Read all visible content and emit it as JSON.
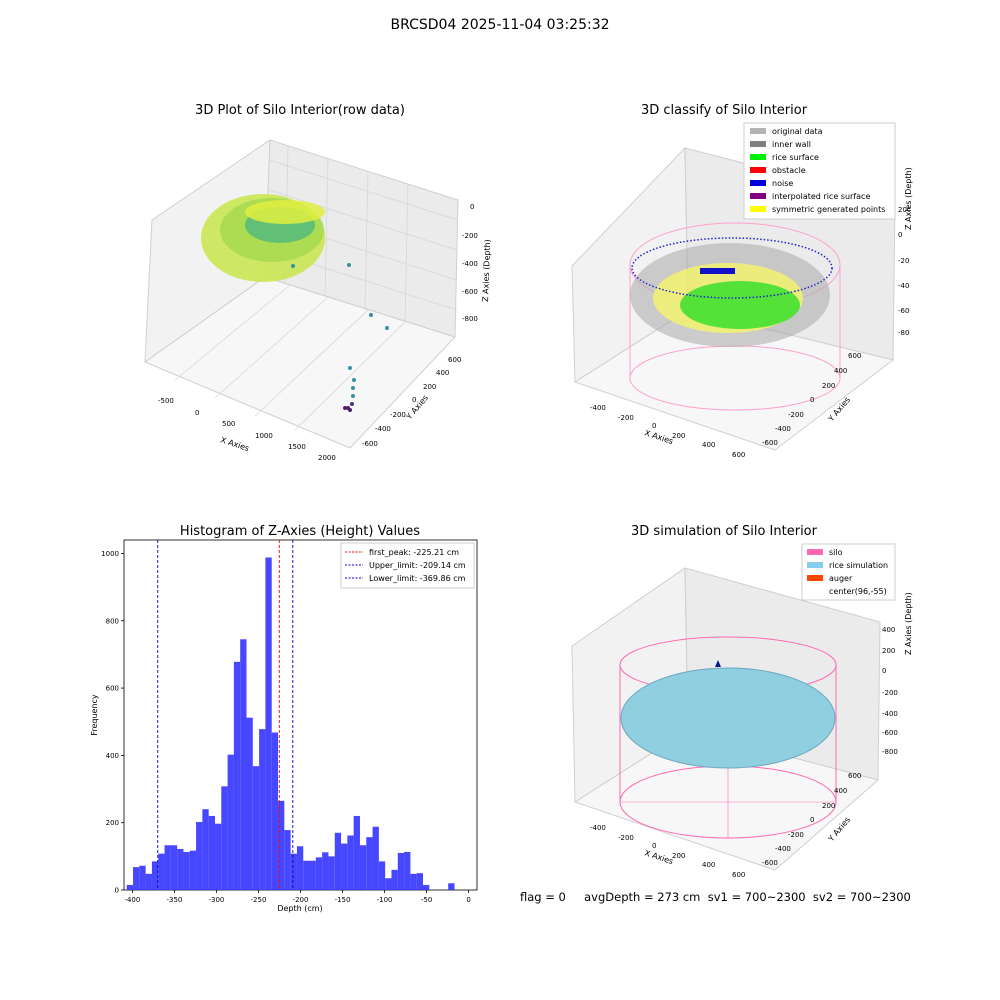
{
  "figure": {
    "suptitle": "BRCSD04 2025-11-04 03:25:32",
    "footer": "flag = 0     avgDepth = 273 cm  sv1 = 700~2300  sv2 = 700~2300"
  },
  "panels": {
    "raw": {
      "title": "3D Plot of Silo Interior(row data)",
      "xlabel": "X Axies",
      "ylabel": "Y Axies",
      "zlabel": "Z Axies (Depth)",
      "xticks": [
        "-500",
        "0",
        "500",
        "1000",
        "1500",
        "2000"
      ],
      "yticks": [
        "600",
        "400",
        "200",
        "0",
        "-200",
        "-400",
        "-600"
      ],
      "zticks": [
        "0",
        "-200",
        "-400",
        "-600",
        "-800"
      ]
    },
    "classify": {
      "title": "3D classify of Silo Interior",
      "xlabel": "X Axies",
      "ylabel": "Y Axies",
      "zlabel": "Z Axies (Depth)",
      "xticks": [
        "-400",
        "-200",
        "0",
        "200",
        "400",
        "600"
      ],
      "yticks": [
        "600",
        "400",
        "200",
        "0",
        "-200",
        "-400",
        "-600"
      ],
      "zticks": [
        "200",
        "0",
        "-200",
        "-400",
        "-600",
        "-800"
      ],
      "legend": [
        {
          "label": "original data",
          "color": "#b3b3b3"
        },
        {
          "label": "inner wall",
          "color": "#808080"
        },
        {
          "label": "rice surface",
          "color": "#00ee00"
        },
        {
          "label": "obstacle",
          "color": "#ff0000"
        },
        {
          "label": "noise",
          "color": "#0000dd"
        },
        {
          "label": "interpolated rice surface",
          "color": "#800080"
        },
        {
          "label": "symmetric generated points",
          "color": "#ffff00"
        }
      ]
    },
    "simulation": {
      "title": "3D simulation of Silo Interior",
      "xlabel": "X Axies",
      "ylabel": "Y Axies",
      "zlabel": "Z Axies (Depth)",
      "xticks": [
        "-400",
        "-200",
        "0",
        "200",
        "400",
        "600"
      ],
      "yticks": [
        "600",
        "400",
        "200",
        "0",
        "-200",
        "-400",
        "-600"
      ],
      "zticks": [
        "400",
        "200",
        "0",
        "-200",
        "-400",
        "-600",
        "-800"
      ],
      "legend": [
        {
          "label": "silo",
          "color": "#ff69b4"
        },
        {
          "label": "rice simulation",
          "color": "#87ceeb"
        },
        {
          "label": "auger",
          "color": "#ff4500"
        },
        {
          "label": "center(96,-55)",
          "color": ""
        }
      ]
    }
  },
  "chart_data": {
    "type": "bar",
    "title": "Histogram of Z-Axies (Height) Values",
    "xlabel": "Depth (cm)",
    "ylabel": "Frequency",
    "xlim": [
      -410,
      10
    ],
    "ylim": [
      0,
      1040
    ],
    "xticks": [
      -400,
      -350,
      -300,
      -250,
      -200,
      -150,
      -100,
      -50,
      0
    ],
    "yticks": [
      0,
      200,
      400,
      600,
      800,
      1000
    ],
    "bin_width": 7.5,
    "bars": [
      {
        "x": -403,
        "v": 15
      },
      {
        "x": -395.5,
        "v": 68
      },
      {
        "x": -388,
        "v": 72
      },
      {
        "x": -380.5,
        "v": 48
      },
      {
        "x": -373,
        "v": 85
      },
      {
        "x": -365.5,
        "v": 108
      },
      {
        "x": -358,
        "v": 133
      },
      {
        "x": -350.5,
        "v": 133
      },
      {
        "x": -343,
        "v": 122
      },
      {
        "x": -335.5,
        "v": 113
      },
      {
        "x": -328,
        "v": 117
      },
      {
        "x": -320.5,
        "v": 202
      },
      {
        "x": -313,
        "v": 240
      },
      {
        "x": -305.5,
        "v": 220
      },
      {
        "x": -298,
        "v": 197
      },
      {
        "x": -290.5,
        "v": 308
      },
      {
        "x": -283,
        "v": 402
      },
      {
        "x": -275.5,
        "v": 678
      },
      {
        "x": -268,
        "v": 745
      },
      {
        "x": -260.5,
        "v": 512
      },
      {
        "x": -253,
        "v": 368
      },
      {
        "x": -245.5,
        "v": 478
      },
      {
        "x": -238,
        "v": 988
      },
      {
        "x": -230.5,
        "v": 468
      },
      {
        "x": -223,
        "v": 265
      },
      {
        "x": -215.5,
        "v": 178
      },
      {
        "x": -208,
        "v": 108
      },
      {
        "x": -200.5,
        "v": 130
      },
      {
        "x": -193,
        "v": 87
      },
      {
        "x": -185.5,
        "v": 87
      },
      {
        "x": -178,
        "v": 97
      },
      {
        "x": -170.5,
        "v": 112
      },
      {
        "x": -163,
        "v": 100
      },
      {
        "x": -155.5,
        "v": 170
      },
      {
        "x": -148,
        "v": 138
      },
      {
        "x": -140.5,
        "v": 162
      },
      {
        "x": -133,
        "v": 220
      },
      {
        "x": -125.5,
        "v": 133
      },
      {
        "x": -118,
        "v": 157
      },
      {
        "x": -110.5,
        "v": 188
      },
      {
        "x": -103,
        "v": 85
      },
      {
        "x": -95.5,
        "v": 35
      },
      {
        "x": -88,
        "v": 60
      },
      {
        "x": -80.5,
        "v": 110
      },
      {
        "x": -73,
        "v": 113
      },
      {
        "x": -65.5,
        "v": 48
      },
      {
        "x": -58,
        "v": 50
      },
      {
        "x": -50.5,
        "v": 15
      },
      {
        "x": -43,
        "v": 0
      },
      {
        "x": -35.5,
        "v": 0
      },
      {
        "x": -28,
        "v": 0
      },
      {
        "x": -20.5,
        "v": 20
      }
    ],
    "lines": [
      {
        "label": "first_peak: -225.21 cm",
        "x": -225.21,
        "color": "#ff0000"
      },
      {
        "label": "Upper_limit: -209.14 cm",
        "x": -209.14,
        "color": "#0000cc"
      },
      {
        "label": "Lower_limit: -369.86 cm",
        "x": -369.86,
        "color": "#0000cc"
      }
    ],
    "bar_color": "#3333ff"
  }
}
